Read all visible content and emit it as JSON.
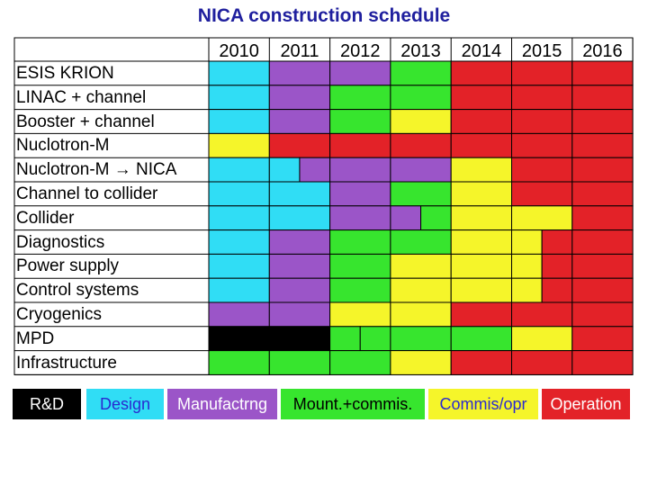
{
  "title": "NICA construction schedule",
  "years": [
    "2010",
    "2011",
    "2012",
    "2013",
    "2014",
    "2015",
    "2016"
  ],
  "colors": {
    "rd": "#000000",
    "design": "#30ddf5",
    "manufacturing": "#9b55c8",
    "mount": "#37e52e",
    "commis": "#f5f52a",
    "operation": "#e32228",
    "empty": "#ffffff"
  },
  "rows": [
    {
      "label": "ESIS  KRION",
      "cells": [
        "design",
        "manufacturing",
        "manufacturing",
        "mount",
        "operation",
        "operation",
        "operation"
      ]
    },
    {
      "label": "LINAC + channel",
      "cells": [
        "design",
        "manufacturing",
        "mount",
        "mount",
        "operation",
        "operation",
        "operation"
      ]
    },
    {
      "label": "Booster + channel",
      "cells": [
        "design",
        "manufacturing",
        "mount",
        "commis",
        "operation",
        "operation",
        "operation"
      ]
    },
    {
      "label": "Nuclotron-M",
      "cells": [
        "commis",
        "operation",
        "operation",
        "operation",
        "operation",
        "operation",
        "operation"
      ]
    },
    {
      "label": "Nuclotron-M → NICA",
      "cells": [
        "design",
        [
          "design",
          "manufacturing"
        ],
        "manufacturing",
        "manufacturing",
        "commis",
        "operation",
        "operation"
      ]
    },
    {
      "label": "Channel to collider",
      "cells": [
        "design",
        "design",
        "manufacturing",
        "mount",
        "commis",
        "operation",
        "operation"
      ]
    },
    {
      "label": "Collider",
      "cells": [
        "design",
        "design",
        "manufacturing",
        [
          "manufacturing",
          "mount"
        ],
        "commis",
        "commis",
        "operation"
      ]
    },
    {
      "label": "Diagnostics",
      "cells": [
        "design",
        "manufacturing",
        "mount",
        "mount",
        "commis",
        [
          "commis",
          "operation"
        ],
        "operation"
      ]
    },
    {
      "label": "Power supply",
      "cells": [
        "design",
        "manufacturing",
        "mount",
        "commis",
        "commis",
        [
          "commis",
          "operation"
        ],
        "operation"
      ]
    },
    {
      "label": "Control systems",
      "cells": [
        "design",
        "manufacturing",
        "mount",
        "commis",
        "commis",
        [
          "commis",
          "operation"
        ],
        "operation"
      ]
    },
    {
      "label": "Cryogenics",
      "cells": [
        "manufacturing",
        "manufacturing",
        "commis",
        "commis",
        "operation",
        "operation",
        "operation"
      ]
    },
    {
      "label": "MPD",
      "cells": [
        "rd",
        "rd",
        [
          "mount",
          "mount"
        ],
        "mount",
        "mount",
        "commis",
        "operation"
      ]
    },
    {
      "label": "Infrastructure",
      "cells": [
        "mount",
        "mount",
        "mount",
        "commis",
        "operation",
        "operation",
        "operation"
      ]
    }
  ],
  "legend": [
    {
      "key": "rd",
      "label": "R&D",
      "text_color": "#ffffff"
    },
    {
      "key": "design",
      "label": "Design",
      "text_color": "#2a2ad0"
    },
    {
      "key": "manufacturing",
      "label": "Manufactrng",
      "text_color": "#ffffff"
    },
    {
      "key": "mount",
      "label": "Mount.+commis.",
      "text_color": "#000000"
    },
    {
      "key": "commis",
      "label": "Commis/opr",
      "text_color": "#2a2ad0"
    },
    {
      "key": "operation",
      "label": "Operation",
      "text_color": "#ffffff"
    }
  ]
}
